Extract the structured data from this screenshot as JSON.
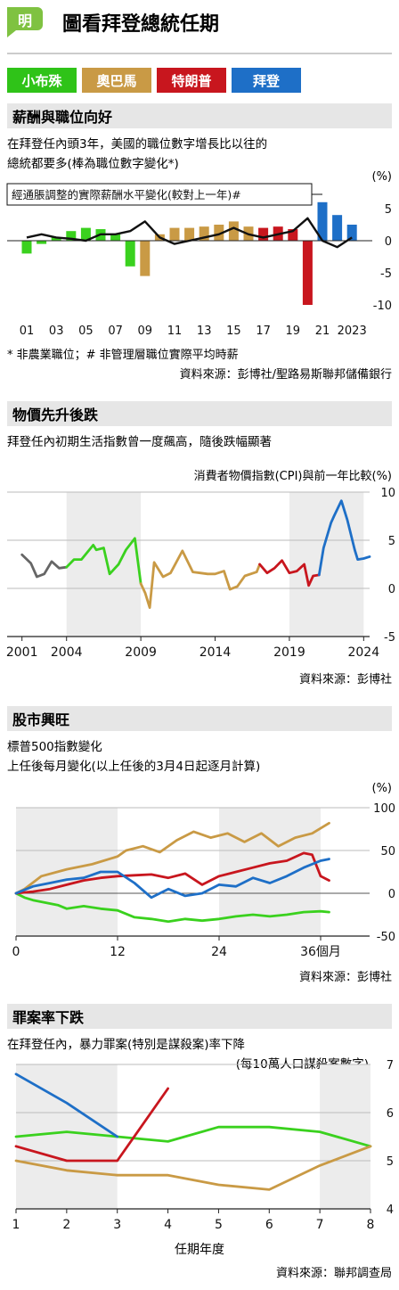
{
  "header": {
    "logo_char": "明",
    "title": "圖看拜登總統任期",
    "legend": [
      {
        "label": "小布殊",
        "color": "#2fc318"
      },
      {
        "label": "奧巴馬",
        "color": "#c99a45"
      },
      {
        "label": "特朗普",
        "color": "#c8161e"
      },
      {
        "label": "拜登",
        "color": "#1e6fc7"
      }
    ]
  },
  "colors": {
    "bush": "#3ad11e",
    "obama": "#c99a45",
    "trump": "#c8161e",
    "biden": "#1e6fc7",
    "pre": "#666666",
    "section_bg": "#e6e6e6"
  },
  "sections": [
    {
      "heading": "薪酬與職位向好",
      "desc1": "在拜登任內頭3年，美國的職位數字增長比以往的",
      "desc2": "總統都要多(棒為職位數字變化*)",
      "unit": "(%)",
      "wage_label": "經通脹調整的實際薪酬水平變化(較對上一年)#",
      "note": "* 非農業職位；# 非管理層職位實際平均時薪",
      "source": "資料來源：彭博社/聖路易斯聯邦儲備銀行"
    },
    {
      "heading": "物價先升後跌",
      "desc1": "拜登任內初期生活指數曾一度飆高，隨後跌幅顯著",
      "chart_title": "消費者物價指數(CPI)與前一年比較(%)",
      "source": "資料來源：彭博社"
    },
    {
      "heading": "股市興旺",
      "desc1": "標普500指數變化",
      "desc2": "上任後每月變化(以上任後的3月4日起逐月計算)",
      "unit": "(%)",
      "source": "資料來源：彭博社"
    },
    {
      "heading": "罪案率下跌",
      "desc1": "在拜登任內，暴力罪案(特別是謀殺案)率下降",
      "desc2": "(每10萬人口謀殺案數字)",
      "xlabel": "任期年度",
      "source": "資料來源：聯邦調查局"
    }
  ],
  "chart_data": [
    {
      "type": "bar",
      "title": "",
      "x": [
        "2001",
        "2002",
        "2003",
        "2004",
        "2005",
        "2006",
        "2007",
        "2008",
        "2009",
        "2010",
        "2011",
        "2012",
        "2013",
        "2014",
        "2015",
        "2016",
        "2017",
        "2018",
        "2019",
        "2020",
        "2021",
        "2022",
        "2023"
      ],
      "xticks": [
        "01",
        "03",
        "05",
        "07",
        "09",
        "11",
        "13",
        "15",
        "17",
        "19",
        "21",
        "2023"
      ],
      "president": [
        "bush",
        "bush",
        "bush",
        "bush",
        "bush",
        "bush",
        "bush",
        "bush",
        "obama",
        "obama",
        "obama",
        "obama",
        "obama",
        "obama",
        "obama",
        "obama",
        "trump",
        "trump",
        "trump",
        "trump",
        "biden",
        "biden",
        "biden"
      ],
      "series": [
        {
          "name": "",
          "values": [
            -2.0,
            -0.5,
            0.5,
            1.5,
            2.0,
            1.8,
            1.0,
            -4.0,
            -5.5,
            1.0,
            2.0,
            2.0,
            2.2,
            2.5,
            3.0,
            2.2,
            2.0,
            2.2,
            1.8,
            -10.0,
            6.0,
            4.0,
            2.5
          ]
        },
        {
          "name": "經通脹調整的實際薪酬水平變化(較對上一年)#",
          "values": [
            0.5,
            1.0,
            0.5,
            0.3,
            0.0,
            1.0,
            1.0,
            1.5,
            3.0,
            0.5,
            -0.5,
            0.0,
            0.5,
            1.0,
            2.0,
            1.0,
            0.5,
            1.0,
            1.5,
            3.5,
            0.0,
            -1.0,
            0.5
          ]
        }
      ],
      "yticks": [
        5,
        0,
        -5,
        -10
      ],
      "ylim": [
        -10,
        6
      ]
    },
    {
      "type": "line",
      "title": "消費者物價指數(CPI)與前一年比較(%)",
      "xticks": [
        2001,
        2004,
        2009,
        2014,
        2019,
        2024
      ],
      "yticks": [
        10,
        5,
        0,
        -5
      ],
      "ylim": [
        -5,
        10
      ],
      "xlim": [
        2000,
        2025
      ],
      "shaded": [
        [
          2004,
          2009
        ],
        [
          2019,
          2024
        ]
      ],
      "series": [
        {
          "name": "",
          "president": "pre",
          "points": [
            [
              2001,
              3.5
            ],
            [
              2001.6,
              2.6
            ],
            [
              2002,
              1.2
            ],
            [
              2002.5,
              1.5
            ],
            [
              2003,
              2.8
            ],
            [
              2003.5,
              2.1
            ],
            [
              2004,
              2.2
            ]
          ]
        },
        {
          "name": "",
          "president": "bush",
          "points": [
            [
              2004,
              2.2
            ],
            [
              2004.5,
              3.0
            ],
            [
              2005,
              3.0
            ],
            [
              2005.8,
              4.5
            ],
            [
              2006,
              4.0
            ],
            [
              2006.5,
              4.2
            ],
            [
              2006.9,
              1.5
            ],
            [
              2007.5,
              2.5
            ],
            [
              2008,
              4.0
            ],
            [
              2008.6,
              5.2
            ],
            [
              2009,
              0.5
            ]
          ]
        },
        {
          "name": "",
          "president": "obama",
          "points": [
            [
              2009,
              0.5
            ],
            [
              2009.3,
              -0.5
            ],
            [
              2009.6,
              -2.0
            ],
            [
              2009.9,
              2.7
            ],
            [
              2010.5,
              1.2
            ],
            [
              2011,
              1.6
            ],
            [
              2011.8,
              3.9
            ],
            [
              2012.5,
              1.7
            ],
            [
              2013,
              1.6
            ],
            [
              2013.5,
              1.5
            ],
            [
              2014,
              1.5
            ],
            [
              2014.6,
              1.8
            ],
            [
              2015,
              -0.1
            ],
            [
              2015.5,
              0.2
            ],
            [
              2016,
              1.3
            ],
            [
              2016.8,
              1.7
            ],
            [
              2017,
              2.5
            ]
          ]
        },
        {
          "name": "",
          "president": "trump",
          "points": [
            [
              2017,
              2.5
            ],
            [
              2017.5,
              1.6
            ],
            [
              2018,
              2.1
            ],
            [
              2018.5,
              2.9
            ],
            [
              2019,
              1.6
            ],
            [
              2019.5,
              1.8
            ],
            [
              2020,
              2.5
            ],
            [
              2020.3,
              0.3
            ],
            [
              2020.6,
              1.3
            ],
            [
              2021,
              1.4
            ]
          ]
        },
        {
          "name": "",
          "president": "biden",
          "points": [
            [
              2021,
              1.4
            ],
            [
              2021.3,
              4.2
            ],
            [
              2021.8,
              6.8
            ],
            [
              2022,
              7.5
            ],
            [
              2022.5,
              9.1
            ],
            [
              2022.9,
              7.1
            ],
            [
              2023.4,
              4.0
            ],
            [
              2023.6,
              3.0
            ],
            [
              2024,
              3.1
            ],
            [
              2024.4,
              3.3
            ]
          ]
        }
      ]
    },
    {
      "type": "line",
      "title": "標普500指數變化",
      "xlabel": "個月",
      "xticks": [
        0,
        12,
        24,
        36
      ],
      "yticks": [
        100,
        50,
        0,
        -50
      ],
      "ylim": [
        -50,
        100
      ],
      "xlim": [
        0,
        40
      ],
      "shaded": [
        [
          0,
          12
        ],
        [
          24,
          36
        ]
      ],
      "series": [
        {
          "name": "",
          "president": "bush",
          "points": [
            [
              0,
              0
            ],
            [
              1,
              -5
            ],
            [
              2,
              -8
            ],
            [
              3,
              -10
            ],
            [
              4,
              -12
            ],
            [
              5,
              -14
            ],
            [
              6,
              -18
            ],
            [
              8,
              -15
            ],
            [
              10,
              -18
            ],
            [
              12,
              -20
            ],
            [
              14,
              -28
            ],
            [
              16,
              -30
            ],
            [
              18,
              -33
            ],
            [
              20,
              -30
            ],
            [
              22,
              -32
            ],
            [
              24,
              -30
            ],
            [
              26,
              -27
            ],
            [
              28,
              -25
            ],
            [
              30,
              -27
            ],
            [
              32,
              -25
            ],
            [
              34,
              -22
            ],
            [
              36,
              -21
            ],
            [
              37,
              -22
            ]
          ]
        },
        {
          "name": "",
          "president": "obama",
          "points": [
            [
              0,
              0
            ],
            [
              1,
              5
            ],
            [
              3,
              20
            ],
            [
              6,
              28
            ],
            [
              9,
              34
            ],
            [
              12,
              43
            ],
            [
              13,
              50
            ],
            [
              15,
              55
            ],
            [
              17,
              48
            ],
            [
              19,
              62
            ],
            [
              21,
              72
            ],
            [
              23,
              65
            ],
            [
              25,
              70
            ],
            [
              27,
              60
            ],
            [
              29,
              70
            ],
            [
              31,
              55
            ],
            [
              33,
              65
            ],
            [
              35,
              70
            ],
            [
              37,
              82
            ]
          ]
        },
        {
          "name": "",
          "president": "trump",
          "points": [
            [
              0,
              0
            ],
            [
              2,
              2
            ],
            [
              4,
              5
            ],
            [
              6,
              10
            ],
            [
              8,
              15
            ],
            [
              10,
              18
            ],
            [
              12,
              20
            ],
            [
              14,
              21
            ],
            [
              16,
              22
            ],
            [
              18,
              18
            ],
            [
              20,
              23
            ],
            [
              22,
              10
            ],
            [
              24,
              20
            ],
            [
              26,
              25
            ],
            [
              28,
              30
            ],
            [
              30,
              35
            ],
            [
              32,
              38
            ],
            [
              34,
              47
            ],
            [
              35,
              45
            ],
            [
              36,
              20
            ],
            [
              37,
              15
            ]
          ]
        },
        {
          "name": "",
          "president": "biden",
          "points": [
            [
              0,
              0
            ],
            [
              2,
              8
            ],
            [
              4,
              12
            ],
            [
              6,
              16
            ],
            [
              8,
              18
            ],
            [
              10,
              25
            ],
            [
              12,
              25
            ],
            [
              14,
              12
            ],
            [
              16,
              -5
            ],
            [
              18,
              5
            ],
            [
              20,
              -3
            ],
            [
              22,
              0
            ],
            [
              24,
              10
            ],
            [
              26,
              8
            ],
            [
              28,
              18
            ],
            [
              30,
              12
            ],
            [
              32,
              20
            ],
            [
              34,
              30
            ],
            [
              36,
              38
            ],
            [
              37,
              40
            ]
          ]
        }
      ]
    },
    {
      "type": "line",
      "title": "",
      "xlabel": "任期年度",
      "xticks": [
        1,
        2,
        3,
        4,
        5,
        6,
        7,
        8
      ],
      "yticks": [
        7,
        6,
        5,
        4
      ],
      "ylim": [
        4,
        7
      ],
      "xlim": [
        1,
        8
      ],
      "shaded": [
        [
          1,
          3
        ],
        [
          7,
          8
        ]
      ],
      "series": [
        {
          "name": "",
          "president": "bush",
          "points": [
            [
              1,
              5.5
            ],
            [
              2,
              5.6
            ],
            [
              3,
              5.5
            ],
            [
              4,
              5.4
            ],
            [
              5,
              5.7
            ],
            [
              6,
              5.7
            ],
            [
              7,
              5.6
            ],
            [
              8,
              5.3
            ]
          ]
        },
        {
          "name": "",
          "president": "obama",
          "points": [
            [
              1,
              5.0
            ],
            [
              2,
              4.8
            ],
            [
              3,
              4.7
            ],
            [
              4,
              4.7
            ],
            [
              5,
              4.5
            ],
            [
              6,
              4.4
            ],
            [
              7,
              4.9
            ],
            [
              8,
              5.3
            ]
          ]
        },
        {
          "name": "",
          "president": "trump",
          "points": [
            [
              1,
              5.3
            ],
            [
              2,
              5.0
            ],
            [
              3,
              5.0
            ],
            [
              4,
              6.5
            ]
          ]
        },
        {
          "name": "",
          "president": "biden",
          "points": [
            [
              1,
              6.8
            ],
            [
              2,
              6.2
            ],
            [
              3,
              5.5
            ]
          ]
        }
      ]
    }
  ]
}
